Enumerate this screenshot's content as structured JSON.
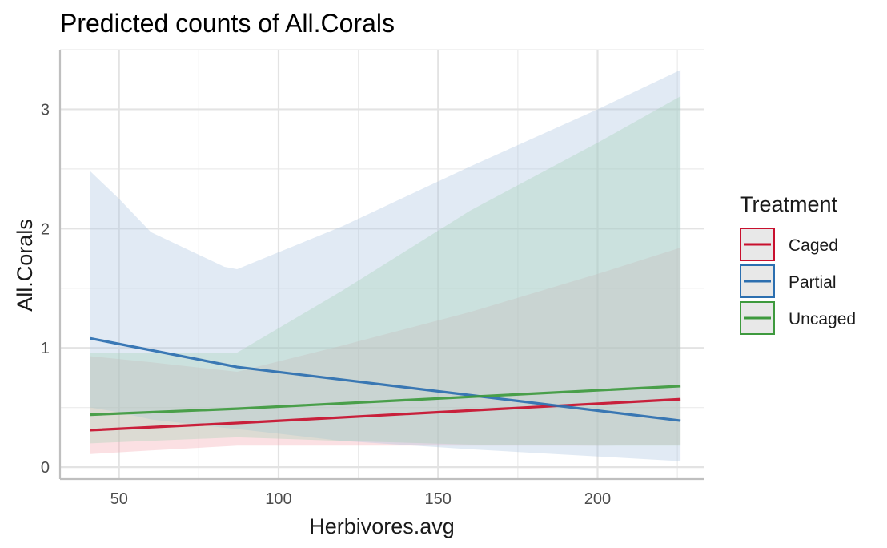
{
  "chart_data": {
    "type": "line",
    "title": "Predicted counts of All.Corals",
    "xlabel": "Herbivores.avg",
    "ylabel": "All.Corals",
    "xlim": [
      31.5,
      233.5
    ],
    "ylim": [
      -0.1,
      3.5
    ],
    "x_ticks": [
      50,
      100,
      150,
      200
    ],
    "x_tick_labels": [
      "50",
      "100",
      "150",
      "200"
    ],
    "y_ticks": [
      0,
      1,
      2,
      3
    ],
    "y_tick_labels": [
      "0",
      "1",
      "2",
      "3"
    ],
    "grid": true,
    "legend": {
      "title": "Treatment",
      "position": "right"
    },
    "series": [
      {
        "name": "Caged",
        "color": "#c8102e",
        "band_color": "#f4a7b0",
        "x": [
          41,
          87,
          226
        ],
        "values": [
          0.31,
          0.37,
          0.57
        ],
        "ci_x": [
          41,
          60,
          87,
          120,
          160,
          200,
          226
        ],
        "ci_lower": [
          0.11,
          0.14,
          0.18,
          0.18,
          0.18,
          0.18,
          0.19
        ],
        "ci_upper": [
          0.93,
          0.88,
          0.8,
          1.02,
          1.3,
          1.62,
          1.84
        ]
      },
      {
        "name": "Partial",
        "color": "#2c6fb0",
        "band_color": "#aac4e0",
        "x": [
          41,
          87,
          226
        ],
        "values": [
          1.08,
          0.84,
          0.39
        ],
        "ci_x": [
          41,
          50,
          60,
          83,
          87,
          120,
          160,
          200,
          226
        ],
        "ci_lower": [
          0.5,
          0.46,
          0.4,
          0.33,
          0.32,
          0.22,
          0.15,
          0.09,
          0.05
        ],
        "ci_upper": [
          2.48,
          2.25,
          1.97,
          1.68,
          1.66,
          2.02,
          2.52,
          3.0,
          3.33
        ]
      },
      {
        "name": "Uncaged",
        "color": "#3e9a3e",
        "band_color": "#a3d1b5",
        "x": [
          41,
          87,
          226
        ],
        "values": [
          0.44,
          0.49,
          0.68
        ],
        "ci_x": [
          41,
          87,
          120,
          160,
          200,
          226
        ],
        "ci_lower": [
          0.2,
          0.25,
          0.22,
          0.19,
          0.18,
          0.18
        ],
        "ci_upper": [
          0.96,
          0.96,
          1.48,
          2.15,
          2.72,
          3.11
        ]
      }
    ]
  }
}
